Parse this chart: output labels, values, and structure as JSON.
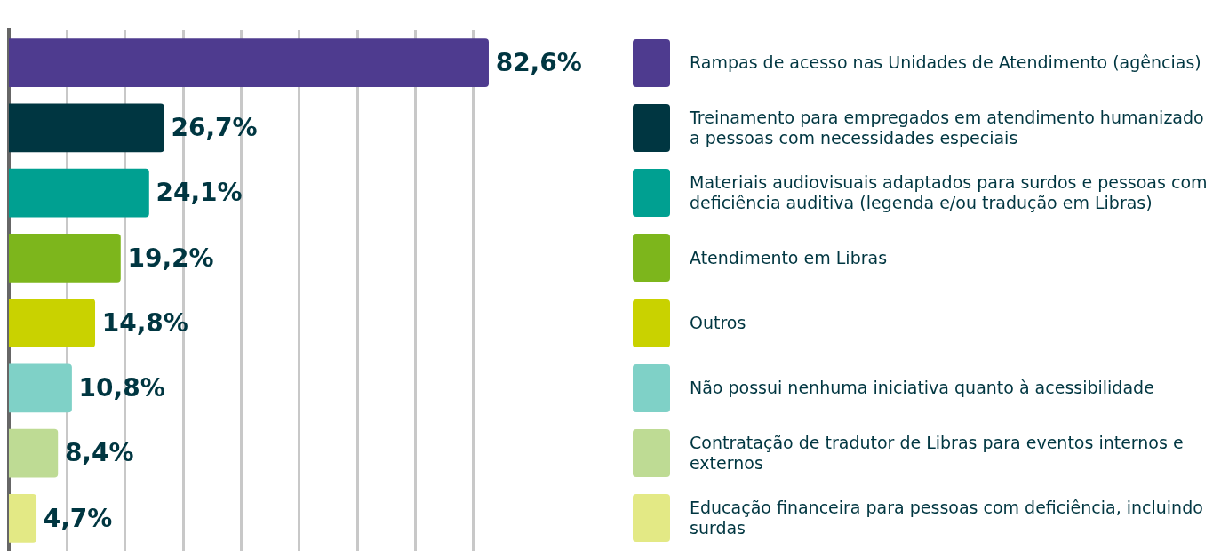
{
  "chart_data": {
    "type": "bar",
    "orientation": "horizontal",
    "categories": [
      "Rampas de acesso nas Unidades de Atendimento (agências)",
      "Treinamento para empregados em atendimento humanizado a pessoas com necessidades especiais",
      "Materiais audiovisuais adaptados para surdos e pessoas com deficiência auditiva (legenda e/ou tradução em Libras)",
      "Atendimento em Libras",
      "Outros",
      "Não possui nenhuma iniciativa quanto à acessibilidade",
      "Contratação de tradutor de Libras para eventos internos e externos",
      "Educação financeira para pessoas com deficiência, incluindo surdas"
    ],
    "values": [
      82.6,
      26.7,
      24.1,
      19.2,
      14.8,
      10.8,
      8.4,
      4.7
    ],
    "value_labels": [
      "82,6%",
      "26,7%",
      "24,1%",
      "19,2%",
      "14,8%",
      "10,8%",
      "8,4%",
      "4,7%"
    ],
    "colors": [
      "#4e3b8f",
      "#003641",
      "#00a091",
      "#7db61c",
      "#c9d200",
      "#7fd1c7",
      "#bedb94",
      "#e3e985"
    ],
    "xticks": [
      {
        "value": 10,
        "label": null
      },
      {
        "value": 20,
        "label": null
      },
      {
        "value": 30,
        "label": null
      },
      {
        "value": 40,
        "label": null
      },
      {
        "value": 50,
        "label": null
      },
      {
        "value": 60,
        "label": null
      },
      {
        "value": 70,
        "label": null
      },
      {
        "value": 80,
        "label": null
      }
    ],
    "tick_labels": false,
    "grid": "x"
  }
}
